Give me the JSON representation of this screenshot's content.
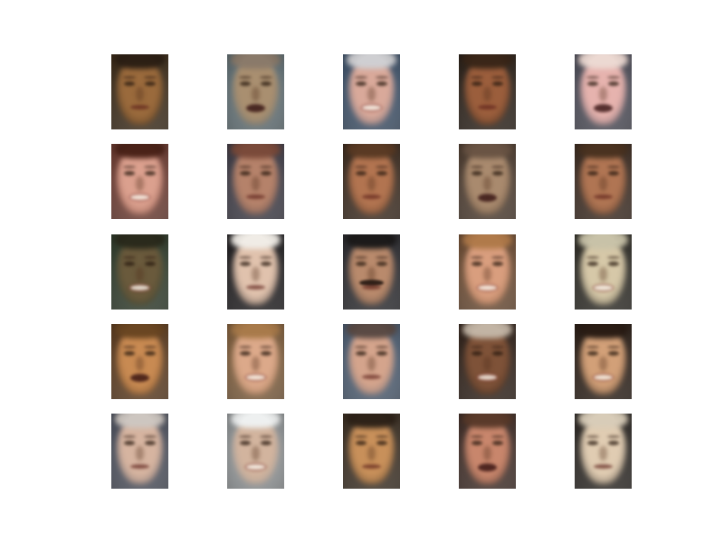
{
  "figure": {
    "columns": 5,
    "rows": 5,
    "faces": [
      {
        "bg": "#3a2a18",
        "skin": "#9a6a3c",
        "hair": "#2c1f14",
        "mouth": "closed",
        "mustache": false
      },
      {
        "bg": "#5d6b70",
        "skin": "#a98f70",
        "hair": "#8a7a6a",
        "mouth": "open",
        "mustache": false
      },
      {
        "bg": "#3c4f66",
        "skin": "#d9a99a",
        "hair": "#cfcfd2",
        "mouth": "smile",
        "mustache": false
      },
      {
        "bg": "#2a2018",
        "skin": "#9b5e3c",
        "hair": "#3a2618",
        "mouth": "closed",
        "mustache": false
      },
      {
        "bg": "#4a4a55",
        "skin": "#e6b3ae",
        "hair": "#ecd9d2",
        "mouth": "open",
        "mustache": false
      },
      {
        "bg": "#6a3a30",
        "skin": "#dba08e",
        "hair": "#4a2218",
        "mouth": "smile",
        "mustache": false
      },
      {
        "bg": "#3c3a44",
        "skin": "#b5826a",
        "hair": "#7a4a3a",
        "mouth": "closed",
        "mustache": false
      },
      {
        "bg": "#3a2a1e",
        "skin": "#b27450",
        "hair": "#5a3a24",
        "mouth": "closed",
        "mustache": false
      },
      {
        "bg": "#4a3a2e",
        "skin": "#a98a6e",
        "hair": "#6a5444",
        "mouth": "open",
        "mustache": false
      },
      {
        "bg": "#3a2a20",
        "skin": "#b07553",
        "hair": "#4a3220",
        "mouth": "closed",
        "mustache": false
      },
      {
        "bg": "#2e3a2a",
        "skin": "#6a5a3c",
        "hair": "#2a2a1c",
        "mouth": "smile",
        "mustache": false
      },
      {
        "bg": "#1e1c1e",
        "skin": "#e0c2ad",
        "hair": "#f0ece6",
        "mouth": "closed",
        "mustache": false
      },
      {
        "bg": "#2a2a2e",
        "skin": "#b98a6c",
        "hair": "#1c1a1a",
        "mouth": "closed",
        "mustache": true
      },
      {
        "bg": "#6a4a32",
        "skin": "#d99e7e",
        "hair": "#b07a4a",
        "mouth": "smile",
        "mustache": false
      },
      {
        "bg": "#2c2a24",
        "skin": "#d6c8a8",
        "hair": "#c8c2a8",
        "mouth": "smile",
        "mustache": false
      },
      {
        "bg": "#5a3a1e",
        "skin": "#c88a52",
        "hair": "#6a4622",
        "mouth": "open",
        "mustache": false
      },
      {
        "bg": "#7a5a3a",
        "skin": "#dca98a",
        "hair": "#a87a4a",
        "mouth": "smile",
        "mustache": false
      },
      {
        "bg": "#4a5a6e",
        "skin": "#d4a48c",
        "hair": "#5a4a44",
        "mouth": "closed",
        "mustache": false
      },
      {
        "bg": "#2e2018",
        "skin": "#7e5238",
        "hair": "#c2b4a4",
        "mouth": "smile",
        "mustache": false
      },
      {
        "bg": "#2a1e16",
        "skin": "#d2a078",
        "hair": "#2a1c14",
        "mouth": "smile",
        "mustache": false
      },
      {
        "bg": "#4a4e5a",
        "skin": "#d6b4a0",
        "hair": "#cdc6c0",
        "mouth": "closed",
        "mustache": false
      },
      {
        "bg": "#8a8e90",
        "skin": "#d2b49e",
        "hair": "#eef0f0",
        "mouth": "smile",
        "mustache": false
      },
      {
        "bg": "#3a2e22",
        "skin": "#c8905a",
        "hair": "#2e2218",
        "mouth": "closed",
        "mustache": false
      },
      {
        "bg": "#3e2c26",
        "skin": "#c8866c",
        "hair": "#5a3a2a",
        "mouth": "open",
        "mustache": false
      },
      {
        "bg": "#2a2622",
        "skin": "#e0ccb2",
        "hair": "#d8ccb8",
        "mouth": "closed",
        "mustache": false
      }
    ]
  }
}
